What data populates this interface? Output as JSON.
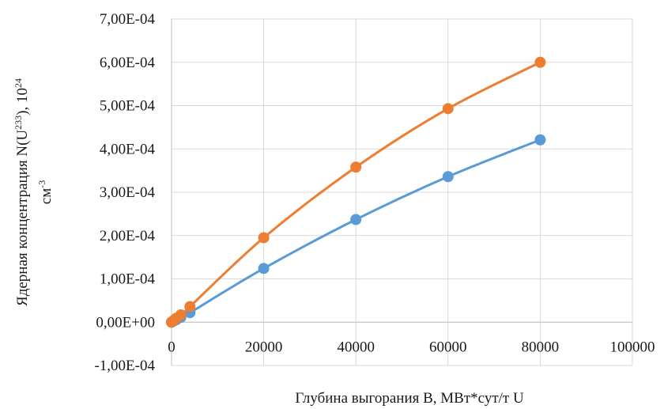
{
  "chart_data": {
    "type": "scatter",
    "title": "",
    "xlabel": "Глубина выгорания B, МВт*сут/т U",
    "ylabel": {
      "line1_text": "Ядерная концентрация N(U",
      "line1_sup": "233",
      "line1_after": "), 10",
      "line1_sup2": "24",
      "line2_text": "см",
      "line2_sup": "-3"
    },
    "xlim": [
      0,
      100000
    ],
    "ylim": [
      -0.0001,
      0.0007
    ],
    "x_ticks": [
      0,
      20000,
      40000,
      60000,
      80000,
      100000
    ],
    "x_tick_labels": [
      "0",
      "20000",
      "40000",
      "60000",
      "80000",
      "100000"
    ],
    "y_ticks": [
      -0.0001,
      0,
      0.0001,
      0.0002,
      0.0003,
      0.0004,
      0.0005,
      0.0006,
      0.0007
    ],
    "y_tick_labels": [
      "-1,00E-04",
      "0,00E+00",
      "1,00E-04",
      "2,00E-04",
      "3,00E-04",
      "4,00E-04",
      "5,00E-04",
      "6,00E-04",
      "7,00E-04"
    ],
    "grid": true,
    "smooth": true,
    "series": [
      {
        "color": "#5b9bd5",
        "x": [
          0,
          500,
          1000,
          2000,
          4000,
          20000,
          40000,
          60000,
          80000
        ],
        "y": [
          0,
          3e-06,
          5.5e-06,
          1.1e-05,
          2.2e-05,
          0.000124,
          0.000237,
          0.000336,
          0.000421
        ]
      },
      {
        "color": "#ed7d31",
        "x": [
          0,
          500,
          1000,
          2000,
          4000,
          20000,
          40000,
          60000,
          80000
        ],
        "y": [
          0,
          4.5e-06,
          9e-06,
          1.7e-05,
          3.6e-05,
          0.000195,
          0.000358,
          0.000493,
          0.0006
        ]
      }
    ]
  }
}
